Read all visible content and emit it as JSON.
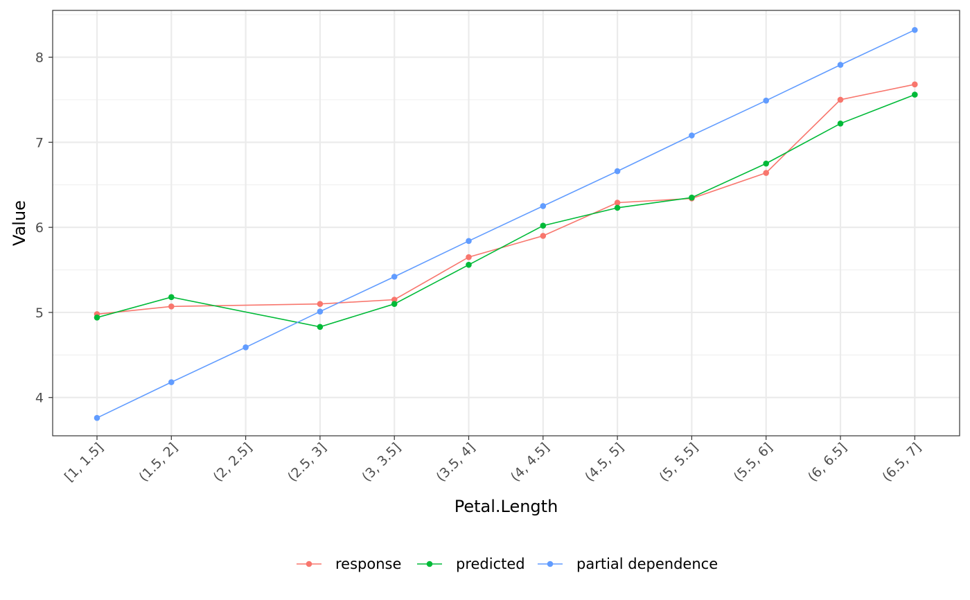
{
  "chart_data": {
    "type": "line",
    "xlabel": "Petal.Length",
    "ylabel": "Value",
    "categories": [
      "[1, 1.5]",
      "(1.5, 2]",
      "(2, 2.5]",
      "(2.5, 3]",
      "(3, 3.5]",
      "(3.5, 4]",
      "(4, 4.5]",
      "(4.5, 5]",
      "(5, 5.5]",
      "(5.5, 6]",
      "(6, 6.5]",
      "(6.5, 7]"
    ],
    "ylim": [
      3.55,
      8.55
    ],
    "yticks": [
      "4",
      "5",
      "6",
      "7",
      "8"
    ],
    "grid": true,
    "legend_position": "bottom",
    "series": [
      {
        "name": "response",
        "color": "#F8766D",
        "values": [
          4.98,
          5.07,
          null,
          5.1,
          5.15,
          5.65,
          5.9,
          6.29,
          6.34,
          6.64,
          7.5,
          7.68
        ]
      },
      {
        "name": "predicted",
        "color": "#00BA38",
        "values": [
          4.94,
          5.18,
          null,
          4.83,
          5.1,
          5.56,
          6.02,
          6.23,
          6.35,
          6.75,
          7.22,
          7.56
        ]
      },
      {
        "name": "partial dependence",
        "color": "#619CFF",
        "values": [
          3.76,
          4.18,
          4.59,
          5.01,
          5.42,
          5.84,
          6.25,
          6.66,
          7.08,
          7.49,
          7.91,
          8.32
        ]
      }
    ]
  }
}
